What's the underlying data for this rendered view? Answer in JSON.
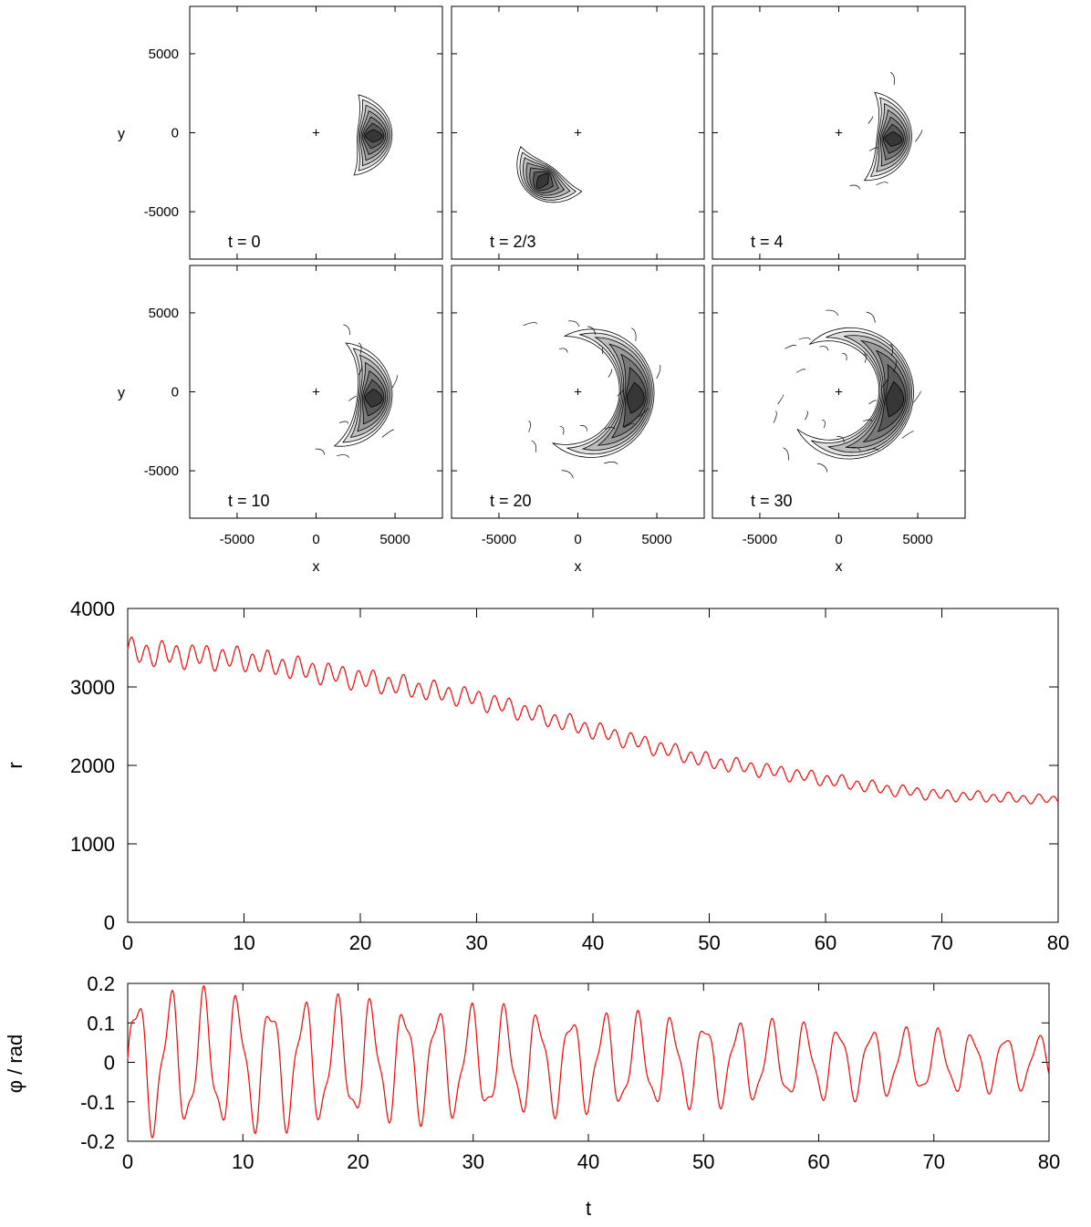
{
  "chart_data": [
    {
      "type": "heatmap",
      "xlabel": "x",
      "ylabel": "y",
      "xlim": [
        -8000,
        8000
      ],
      "ylim": [
        -8000,
        8000
      ],
      "xticks": [
        "-5000",
        "0",
        "5000"
      ],
      "yticks": [
        "5000",
        "0",
        "-5000"
      ],
      "center_marker": "+",
      "panels": [
        {
          "label": "t = 0",
          "peak": [
            3600,
            -200
          ],
          "angle_deg": 0,
          "width_deg": 90,
          "spread": 0
        },
        {
          "label": "t = 2/3",
          "peak": [
            -2200,
            -3000
          ],
          "angle_deg": 235,
          "width_deg": 80,
          "spread": 0
        },
        {
          "label": "t = 4",
          "peak": [
            3400,
            -400
          ],
          "angle_deg": 0,
          "width_deg": 110,
          "spread": 0.2
        },
        {
          "label": "t = 10",
          "peak": [
            3600,
            -400
          ],
          "angle_deg": 0,
          "width_deg": 130,
          "spread": 0.3
        },
        {
          "label": "t = 20",
          "peak": [
            3600,
            -400
          ],
          "angle_deg": 0,
          "width_deg": 220,
          "spread": 0.6
        },
        {
          "label": "t = 30",
          "peak": [
            3500,
            -500
          ],
          "angle_deg": 0,
          "width_deg": 260,
          "spread": 0.8
        }
      ]
    },
    {
      "type": "line",
      "xlabel": "",
      "ylabel": "r",
      "xlim": [
        0,
        80
      ],
      "ylim": [
        0,
        4000
      ],
      "xticks": [
        "0",
        "10",
        "20",
        "30",
        "40",
        "50",
        "60",
        "70",
        "80"
      ],
      "yticks": [
        "0",
        "1000",
        "2000",
        "3000",
        "4000"
      ],
      "color": "#ff0000",
      "trend": {
        "t": [
          0,
          10,
          20,
          30,
          40,
          50,
          60,
          65,
          70,
          80
        ],
        "r": [
          3450,
          3350,
          3100,
          2850,
          2450,
          2050,
          1820,
          1700,
          1620,
          1560
        ]
      },
      "oscillation": {
        "period": 1.3,
        "amplitude_start": 140,
        "amplitude_end": 50
      }
    },
    {
      "type": "line",
      "xlabel": "t",
      "ylabel": "φ / rad",
      "xlim": [
        0,
        80
      ],
      "ylim": [
        -0.2,
        0.2
      ],
      "xticks": [
        "0",
        "10",
        "20",
        "30",
        "40",
        "50",
        "60",
        "70",
        "80"
      ],
      "yticks": [
        "0.2",
        "0.1",
        "0",
        "-0.1",
        "-0.2"
      ],
      "color": "#ff0000",
      "oscillation": {
        "period": 2.9,
        "amplitude_start": 0.16,
        "amplitude_end": 0.06,
        "secondary_period": 1.3,
        "secondary_amplitude": 0.045
      }
    }
  ]
}
